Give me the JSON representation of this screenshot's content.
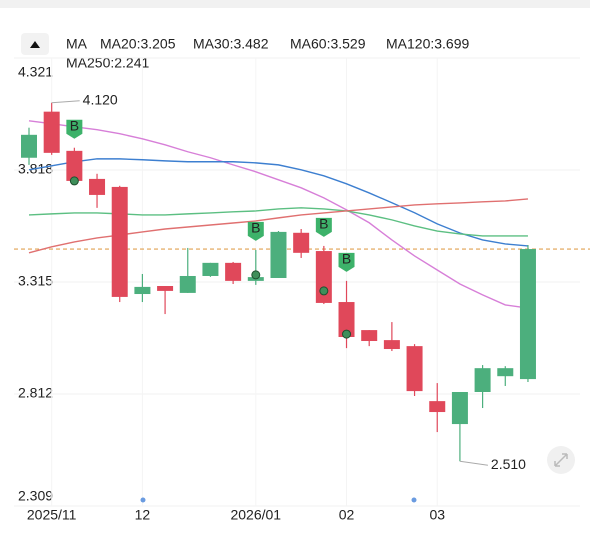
{
  "chart_data": {
    "type": "candlestick",
    "indicator": "MA",
    "legend": [
      {
        "text": "MA20:3.205",
        "color": "#d77fd8"
      },
      {
        "text": "MA30:3.482",
        "color": "#3d7fd0"
      },
      {
        "text": "MA60:3.529",
        "color": "#5cbf82"
      },
      {
        "text": "MA120:3.699",
        "color": "#e07070"
      },
      {
        "text": "MA250:2.241",
        "color": "#74e0ec"
      }
    ],
    "categories": [
      null,
      "2025/11",
      null,
      null,
      null,
      "12",
      null,
      null,
      null,
      null,
      "2026/01",
      null,
      null,
      null,
      "02",
      null,
      null,
      null,
      "03",
      null,
      null,
      null,
      null
    ],
    "open": [
      3.873,
      4.08,
      3.904,
      3.778,
      3.742,
      3.261,
      3.297,
      3.266,
      3.342,
      3.401,
      3.32,
      3.333,
      3.536,
      3.454,
      3.225,
      3.099,
      3.054,
      3.027,
      2.78,
      2.677,
      2.821,
      2.892,
      2.879
    ],
    "high": [
      4.008,
      4.12,
      3.918,
      3.801,
      3.747,
      3.351,
      3.297,
      3.468,
      3.401,
      3.405,
      3.459,
      3.544,
      3.553,
      3.477,
      3.32,
      3.099,
      3.135,
      3.036,
      2.861,
      2.821,
      2.942,
      2.937,
      3.481
    ],
    "low": [
      3.841,
      3.886,
      3.751,
      3.648,
      3.225,
      3.225,
      3.171,
      3.266,
      3.338,
      3.306,
      3.302,
      3.333,
      3.423,
      3.216,
      3.018,
      3.027,
      3.005,
      2.803,
      2.641,
      2.51,
      2.749,
      2.848,
      2.866
    ],
    "close": [
      3.976,
      3.895,
      3.769,
      3.706,
      3.248,
      3.293,
      3.275,
      3.342,
      3.401,
      3.32,
      3.337,
      3.54,
      3.446,
      3.221,
      3.068,
      3.05,
      3.014,
      2.825,
      2.731,
      2.821,
      2.928,
      2.928,
      3.463
    ],
    "up_color": "#4caf7d",
    "down_color": "#e0485a",
    "series": [
      {
        "name": "MA20",
        "color": "#d77fd8",
        "values": [
          4.039,
          4.026,
          4.012,
          3.999,
          3.981,
          3.958,
          3.931,
          3.9,
          3.873,
          3.841,
          3.81,
          3.774,
          3.738,
          3.693,
          3.639,
          3.581,
          3.504,
          3.432,
          3.369,
          3.306,
          3.257,
          3.212,
          3.198
        ]
      },
      {
        "name": "MA30",
        "color": "#3d7fd0",
        "values": [
          3.819,
          3.837,
          3.855,
          3.868,
          3.868,
          3.864,
          3.859,
          3.855,
          3.855,
          3.855,
          3.85,
          3.841,
          3.819,
          3.792,
          3.756,
          3.715,
          3.671,
          3.626,
          3.576,
          3.535,
          3.504,
          3.486,
          3.477
        ]
      },
      {
        "name": "MA60",
        "color": "#5cbf82",
        "values": [
          3.616,
          3.621,
          3.625,
          3.625,
          3.621,
          3.616,
          3.616,
          3.621,
          3.625,
          3.63,
          3.634,
          3.643,
          3.648,
          3.643,
          3.634,
          3.616,
          3.594,
          3.567,
          3.544,
          3.531,
          3.522,
          3.522,
          3.522
        ]
      },
      {
        "name": "MA120",
        "color": "#e07070",
        "values": [
          3.446,
          3.473,
          3.495,
          3.513,
          3.526,
          3.54,
          3.553,
          3.562,
          3.571,
          3.58,
          3.589,
          3.603,
          3.616,
          3.625,
          3.634,
          3.643,
          3.652,
          3.661,
          3.666,
          3.67,
          3.675,
          3.679,
          3.688
        ]
      }
    ],
    "signal_labels": [
      null,
      null,
      "B",
      null,
      null,
      null,
      null,
      null,
      null,
      null,
      "B",
      null,
      null,
      "B",
      "B",
      null,
      null,
      null,
      null,
      null,
      null,
      null,
      null
    ],
    "signal_values": [
      null,
      null,
      3.769,
      null,
      null,
      null,
      null,
      null,
      null,
      null,
      3.347,
      null,
      null,
      3.275,
      3.081,
      null,
      null,
      null,
      null,
      null,
      null,
      null,
      null
    ],
    "signal_color": "#3db26a",
    "annotations": [
      "4.120",
      "2.510"
    ],
    "last_price": 3.463,
    "last_price_color": "#e0a050",
    "ylim": [
      2.309,
      4.321
    ],
    "yticks": [
      4.321,
      3.818,
      3.315,
      2.812,
      2.309
    ],
    "grid": true
  }
}
